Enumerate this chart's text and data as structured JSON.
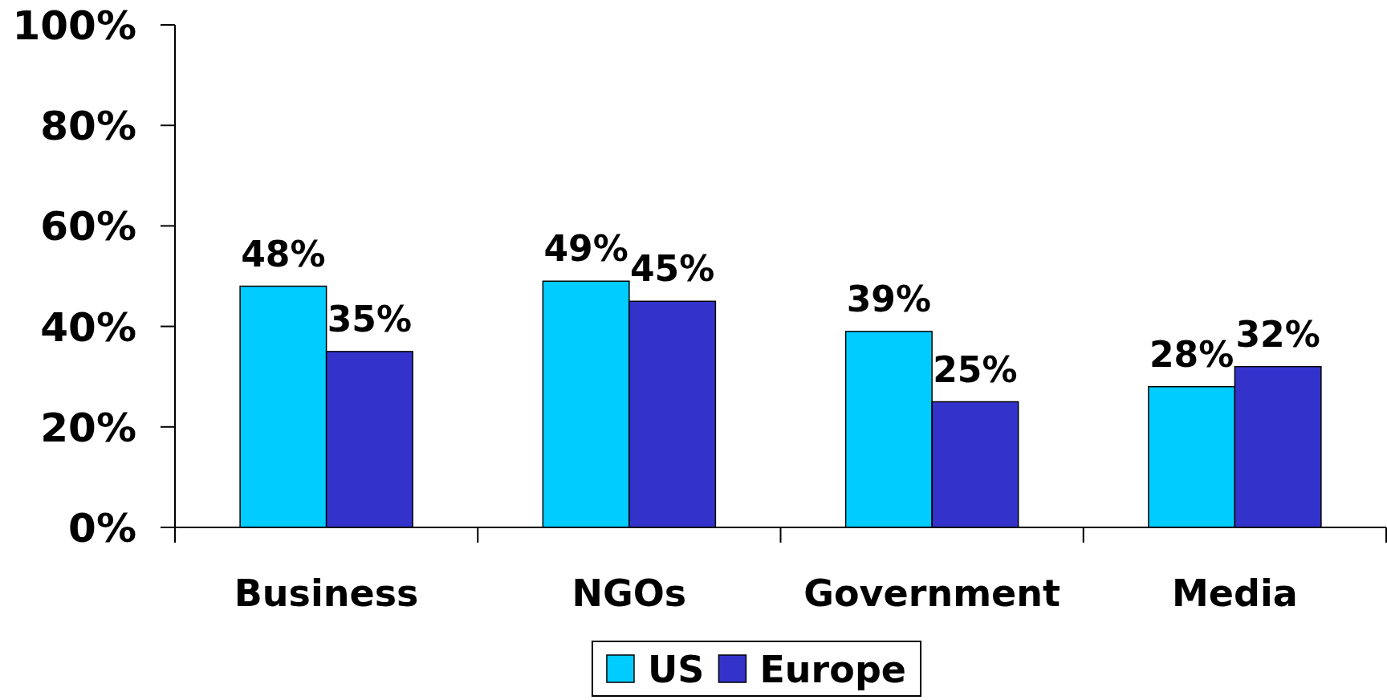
{
  "chart_data": {
    "type": "bar",
    "categories": [
      "Business",
      "NGOs",
      "Government",
      "Media"
    ],
    "series": [
      {
        "name": "US",
        "color": "#00ccff",
        "values": [
          48,
          49,
          39,
          28
        ],
        "value_labels": [
          "48%",
          "49%",
          "39%",
          "28%"
        ]
      },
      {
        "name": "Europe",
        "color": "#3333cc",
        "values": [
          35,
          45,
          25,
          32
        ],
        "value_labels": [
          "35%",
          "45%",
          "25%",
          "32%"
        ]
      }
    ],
    "ylim": [
      0,
      100
    ],
    "yticks": [
      {
        "value": 0,
        "label": "0%"
      },
      {
        "value": 20,
        "label": "20%"
      },
      {
        "value": 40,
        "label": "40%"
      },
      {
        "value": 60,
        "label": "60%"
      },
      {
        "value": 80,
        "label": "80%"
      },
      {
        "value": 100,
        "label": "100%"
      }
    ],
    "legend": "bottom"
  }
}
